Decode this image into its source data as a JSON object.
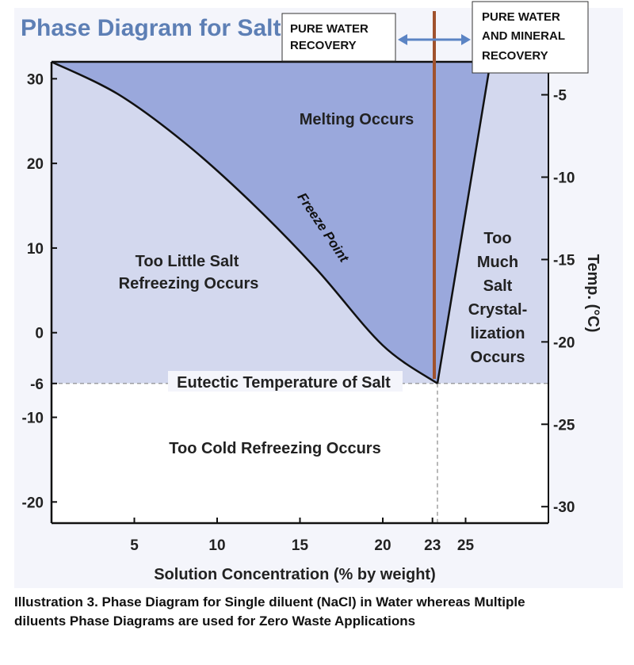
{
  "chart_data": {
    "type": "area",
    "title": "Phase Diagram for Salt",
    "xlabel": "Solution Concentration (% by weight)",
    "ylabel_left": "",
    "ylabel_right": "Temp. (°C)",
    "xlim": [
      0,
      30
    ],
    "ylim_left": [
      -22.5,
      32
    ],
    "ylim_right": [
      -31,
      -3
    ],
    "x_ticks": [
      5,
      10,
      15,
      20,
      23,
      25
    ],
    "y_ticks_left": [
      30,
      20,
      10,
      0,
      -6,
      -10,
      -20
    ],
    "y_ticks_right": [
      -5,
      -10,
      -15,
      -20,
      -25,
      -30
    ],
    "series": [
      {
        "name": "Freeze Point",
        "x": [
          0,
          4,
          8,
          12,
          16,
          20,
          23.3
        ],
        "y": [
          32,
          28.2,
          22.5,
          15.5,
          7.5,
          -1.5,
          -6
        ]
      },
      {
        "name": "",
        "x": [
          23.3,
          26.5
        ],
        "y": [
          -6,
          32
        ]
      }
    ],
    "eutectic": {
      "x": 23.3,
      "y": -6,
      "label": "Eutectic Temperature of Salt"
    },
    "regions": [
      {
        "label": "Melting Occurs"
      },
      {
        "label": "Too Little Salt Refreezing Occurs"
      },
      {
        "label": "Too Much Salt Crystal- lization Occurs"
      },
      {
        "label": "Too Cold Refreezing Occurs"
      }
    ],
    "curve_label": "Freeze Point",
    "colors": {
      "melt_region": "#9aa8dc",
      "other_region": "#d3d8ee",
      "cold_region": "#ffffff",
      "curve": "#111111",
      "recovery_line": "#a0522d",
      "arrow": "#5b84c4",
      "title": "#5d7fb5"
    }
  },
  "callouts": {
    "pure_water_line1": "PURE WATER",
    "pure_water_line2": "RECOVERY",
    "mineral_line1": "PURE WATER",
    "mineral_line2": "AND MINERAL",
    "mineral_line3": "RECOVERY"
  },
  "labels": {
    "melting": "Melting Occurs",
    "too_little_1": "Too Little Salt",
    "too_little_2": "Refreezing Occurs",
    "too_much": [
      "Too",
      "Much",
      "Salt",
      "Crystal-",
      "lization",
      "Occurs"
    ],
    "too_cold": "Too Cold Refreezing Occurs"
  },
  "caption": {
    "line1": "Illustration 3. Phase Diagram for Single diluent (NaCl) in Water whereas Multiple",
    "line2": "diluents Phase Diagrams are used for Zero Waste Applications"
  }
}
